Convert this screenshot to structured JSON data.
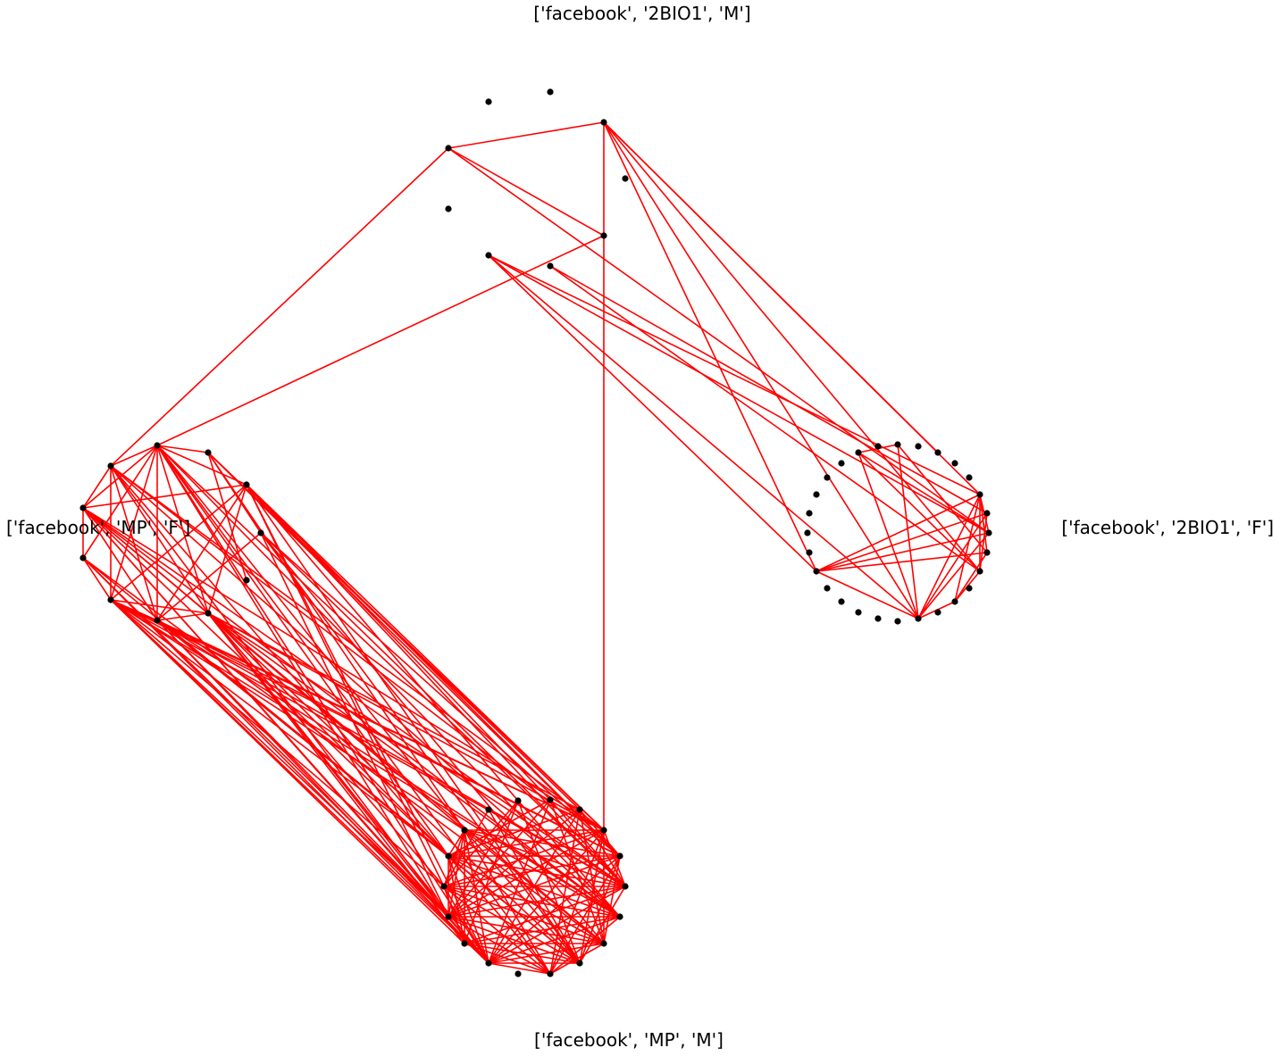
{
  "diagram": {
    "groups": [
      {
        "id": "g_top",
        "label": "['facebook', '2BIO1', 'M']"
      },
      {
        "id": "g_right",
        "label": "['facebook', '2BIO1', 'F']"
      },
      {
        "id": "g_left",
        "label": "['facebook', 'MP', 'F']"
      },
      {
        "id": "g_bottom",
        "label": "['facebook', 'MP', 'M']"
      }
    ],
    "edge_color": "#ff0000",
    "node_color": "#000000",
    "background": "#ffffff"
  }
}
